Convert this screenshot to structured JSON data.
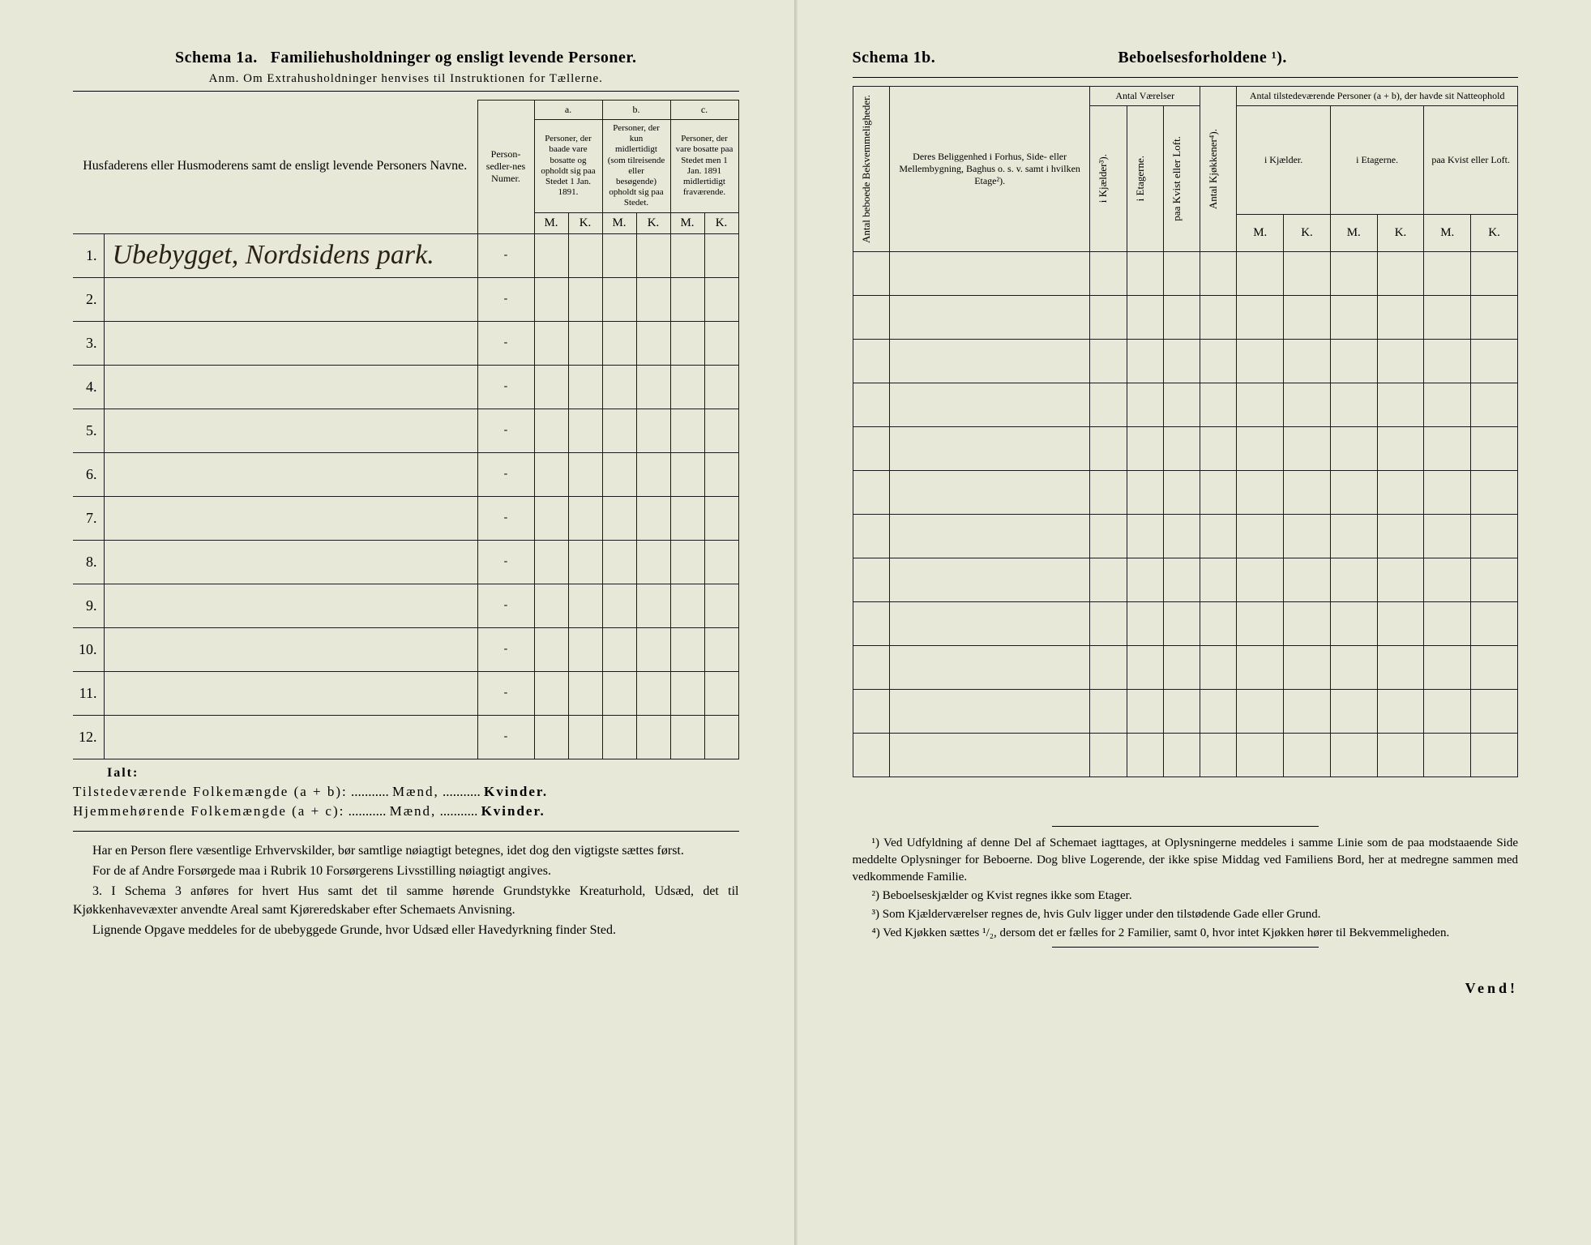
{
  "left": {
    "schema_label": "Schema 1a.",
    "title": "Familiehusholdninger og ensligt levende Personer.",
    "subtitle": "Anm. Om Extrahusholdninger henvises til Instruktionen for Tællerne.",
    "headers": {
      "names": "Husfaderens eller Husmoderens samt de ensligt levende Personers Navne.",
      "person_num": "Person-sedler-nes Numer.",
      "col_a_letter": "a.",
      "col_a": "Personer, der baade vare bosatte og opholdt sig paa Stedet 1 Jan. 1891.",
      "col_b_letter": "b.",
      "col_b": "Personer, der kun midlertidigt (som tilreisende eller besøgende) opholdt sig paa Stedet.",
      "col_c_letter": "c.",
      "col_c": "Personer, der vare bosatte paa Stedet men 1 Jan. 1891 midlertidigt fraværende.",
      "M": "M.",
      "K": "K."
    },
    "rows": [
      {
        "num": "1.",
        "name": "Ubebygget,  Nordsidens park."
      },
      {
        "num": "2.",
        "name": ""
      },
      {
        "num": "3.",
        "name": ""
      },
      {
        "num": "4.",
        "name": ""
      },
      {
        "num": "5.",
        "name": ""
      },
      {
        "num": "6.",
        "name": ""
      },
      {
        "num": "7.",
        "name": ""
      },
      {
        "num": "8.",
        "name": ""
      },
      {
        "num": "9.",
        "name": ""
      },
      {
        "num": "10.",
        "name": ""
      },
      {
        "num": "11.",
        "name": ""
      },
      {
        "num": "12.",
        "name": ""
      }
    ],
    "ialt": "Ialt:",
    "summary1_a": "Tilstedeværende Folkemængde (a + b):",
    "summary1_b": "Mænd,",
    "summary1_c": "Kvinder.",
    "summary2_a": "Hjemmehørende Folkemængde (a + c):",
    "summary2_b": "Mænd,",
    "summary2_c": "Kvinder.",
    "notes": [
      "Har en Person flere væsentlige Erhvervskilder, bør samtlige nøiagtigt betegnes, idet dog den vigtigste sættes først.",
      "For de af Andre Forsørgede maa i Rubrik 10 Forsørgerens Livsstilling nøiagtigt angives.",
      "3. I Schema 3 anføres for hvert Hus samt det til samme hørende Grundstykke Kreaturhold, Udsæd, det til Kjøkkenhavevæxter anvendte Areal samt Kjøreredskaber efter Schemaets Anvisning.",
      "Lignende Opgave meddeles for de ubebyggede Grunde, hvor Udsæd eller Havedyrkning finder Sted."
    ]
  },
  "right": {
    "schema_label": "Schema 1b.",
    "title": "Beboelsesforholdene ¹).",
    "headers": {
      "bekvem": "Antal beboede Bekvemmeligheder.",
      "beliggenhed": "Deres Beliggenhed i Forhus, Side- eller Mellembygning, Baghus o. s. v. samt i hvilken Etage²).",
      "vaerelser": "Antal Værelser",
      "kjaelder3": "i Kjælder³).",
      "etagerne": "i Etagerne.",
      "kvist": "paa Kvist eller Loft.",
      "kjokkener": "Antal Kjøkkener⁴).",
      "tilstede": "Antal tilstedeværende Personer (a + b), der havde sit Natteophold",
      "ikjaelder": "i Kjælder.",
      "ietagerne": "i Etagerne.",
      "paakvist": "paa Kvist eller Loft.",
      "M": "M.",
      "K": "K."
    },
    "row_count": 12,
    "notes": [
      "¹) Ved Udfyldning af denne Del af Schemaet iagttages, at Oplysningerne meddeles i samme Linie som de paa modstaaende Side meddelte Oplysninger for Beboerne. Dog blive Logerende, der ikke spise Middag ved Familiens Bord, her at medregne sammen med vedkommende Familie.",
      "²) Beboelseskjælder og Kvist regnes ikke som Etager.",
      "³) Som Kjælderværelser regnes de, hvis Gulv ligger under den tilstødende Gade eller Grund.",
      "⁴) Ved Kjøkken sættes ¹/₂, dersom det er fælles for 2 Familier, samt 0, hvor intet Kjøkken hører til Bekvemmeligheden."
    ],
    "vend": "Vend!"
  }
}
